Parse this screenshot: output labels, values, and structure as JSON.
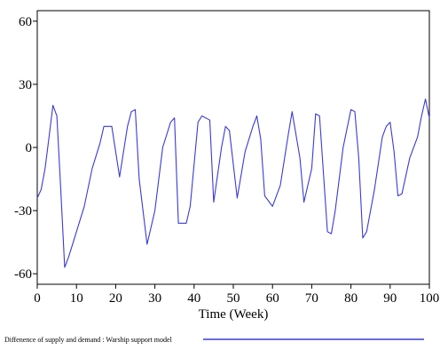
{
  "chart_data": {
    "type": "line",
    "title": "",
    "xlabel": "Time (Week)",
    "ylabel": "",
    "xlim": [
      0,
      100
    ],
    "ylim": [
      -65,
      65
    ],
    "xticks": [
      0,
      10,
      20,
      30,
      40,
      50,
      60,
      70,
      80,
      90,
      100
    ],
    "xtick_labels": [
      "0",
      "10",
      "20",
      "30",
      "40",
      "50",
      "60",
      "70",
      "80",
      "90",
      "100"
    ],
    "yticks": [
      60,
      30,
      0,
      -30,
      -60
    ],
    "ytick_labels": [
      "60",
      "30",
      "0",
      "-30",
      "-60"
    ],
    "grid": false,
    "legend": {
      "placement": "bottom",
      "color": "#3a3ad6"
    },
    "series": [
      {
        "name": "Diffenence of supply and demand : Warship support model",
        "color": "#3a3ad6",
        "x": [
          0,
          1,
          2,
          3,
          4,
          5,
          6,
          7,
          8,
          10,
          12,
          14,
          16,
          17,
          19,
          21,
          23,
          24,
          25,
          26,
          28,
          30,
          32,
          34,
          35,
          36,
          38,
          39,
          41,
          42,
          44,
          45,
          47,
          48,
          49,
          51,
          53,
          55,
          56,
          57,
          58,
          60,
          62,
          64,
          65,
          67,
          68,
          70,
          71,
          72,
          74,
          75,
          76,
          78,
          80,
          81,
          82,
          83,
          84,
          86,
          88,
          89,
          90,
          91,
          92,
          93,
          95,
          97,
          98,
          99,
          100
        ],
        "values": [
          -24,
          -20,
          -10,
          5,
          20,
          15,
          -20,
          -57,
          -52,
          -40,
          -28,
          -10,
          2,
          10,
          10,
          -14,
          10,
          17,
          18,
          -15,
          -46,
          -30,
          0,
          12,
          14,
          -36,
          -36,
          -28,
          12,
          15,
          13,
          -26,
          0,
          10,
          8,
          -24,
          -2,
          10,
          15,
          4,
          -23,
          -28,
          -18,
          6,
          17,
          -5,
          -26,
          -10,
          16,
          15,
          -40,
          -41,
          -30,
          0,
          18,
          17,
          -5,
          -43,
          -40,
          -20,
          5,
          10,
          12,
          -2,
          -23,
          -22,
          -5,
          5,
          15,
          23,
          14
        ]
      }
    ]
  }
}
